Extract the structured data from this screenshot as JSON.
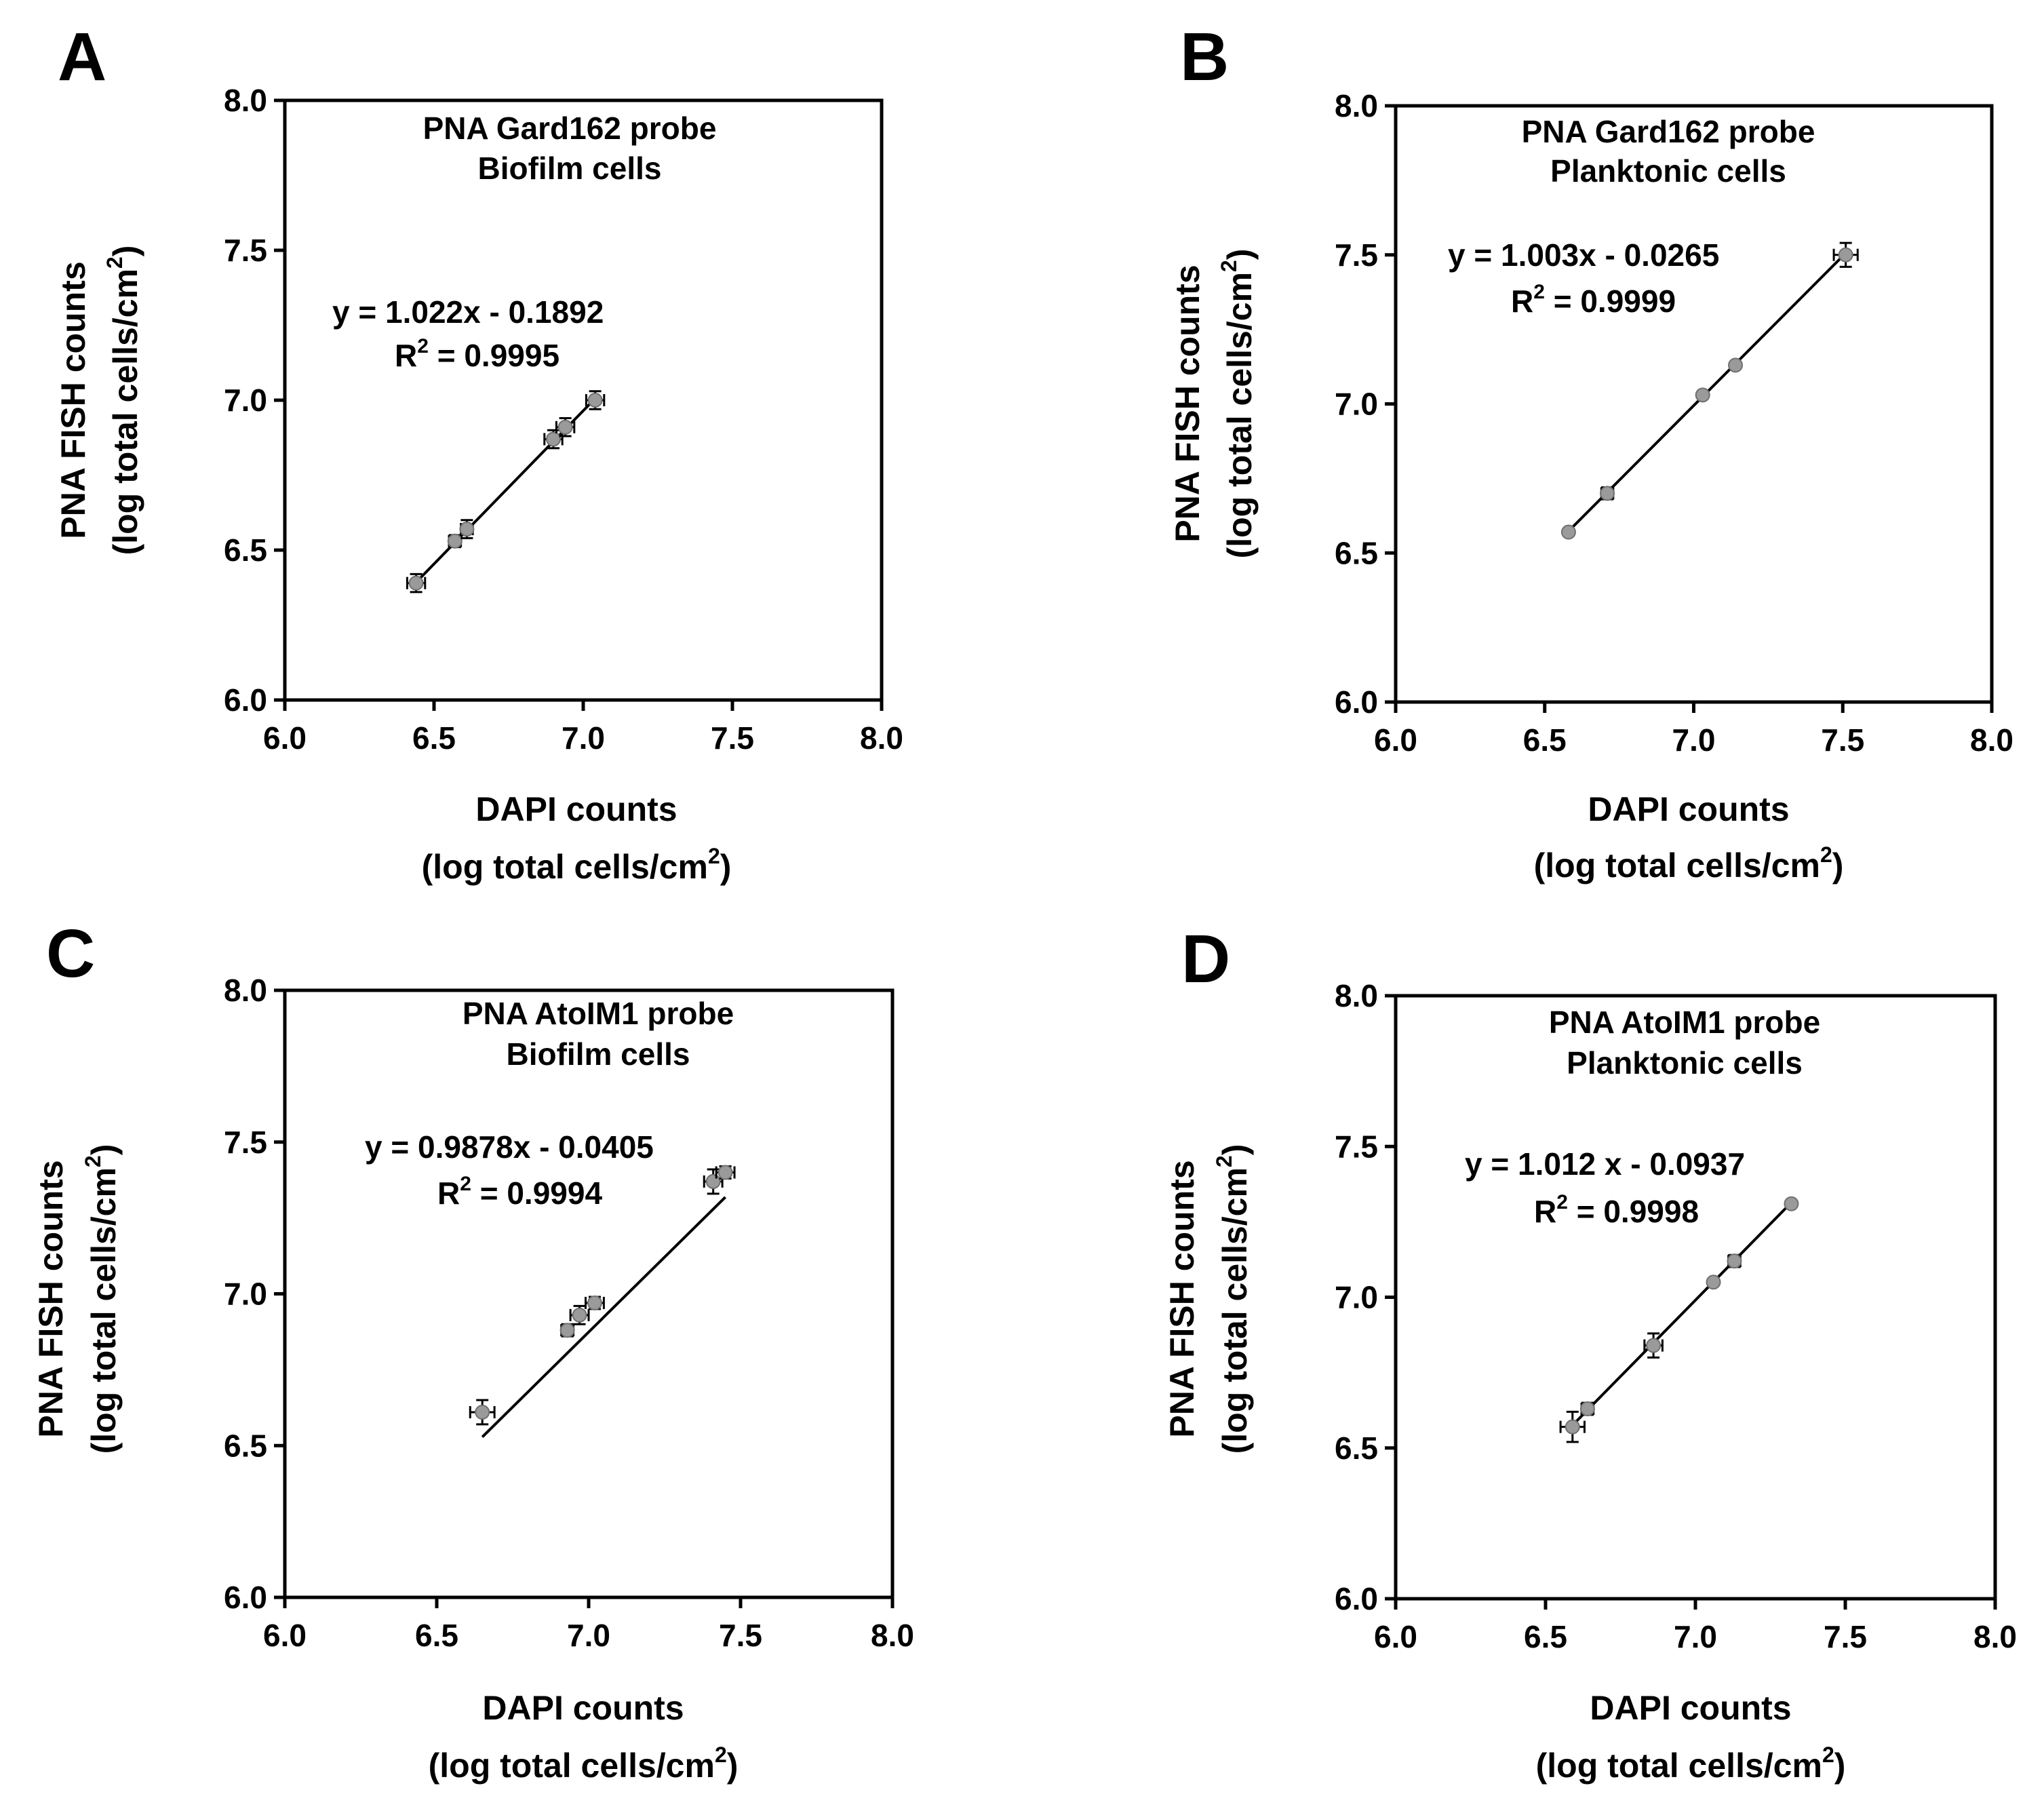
{
  "figure": {
    "units_label": "(log total cells/cm",
    "units_sup": "2",
    "units_close": ")",
    "r2_prefix": "R",
    "r2_sup": "2"
  },
  "chart_data": [
    {
      "panel": "A",
      "type": "scatter",
      "title": [
        "PNA Gard162 probe",
        "Biofilm cells"
      ],
      "xlabel": "DAPI counts",
      "ylabel": "PNA FISH counts",
      "xlim": [
        6.0,
        8.0
      ],
      "ylim": [
        6.0,
        8.0
      ],
      "xticks": [
        "6.0",
        "6.5",
        "7.0",
        "7.5",
        "8.0"
      ],
      "yticks": [
        "6.0",
        "6.5",
        "7.0",
        "7.5",
        "8.0"
      ],
      "equation": "y = 1.022x - 0.1892",
      "r2_value": " = 0.9995",
      "slope": 1.022,
      "intercept": -0.1892,
      "fit_x": [
        6.44,
        7.04
      ],
      "points": [
        {
          "x": 6.44,
          "y": 6.39,
          "xerr": 0.03,
          "yerr": 0.03
        },
        {
          "x": 6.57,
          "y": 6.53,
          "xerr": 0.02,
          "yerr": 0.02
        },
        {
          "x": 6.61,
          "y": 6.57,
          "xerr": 0.02,
          "yerr": 0.03
        },
        {
          "x": 6.9,
          "y": 6.87,
          "xerr": 0.03,
          "yerr": 0.03
        },
        {
          "x": 6.94,
          "y": 6.91,
          "xerr": 0.03,
          "yerr": 0.03
        },
        {
          "x": 7.04,
          "y": 7.0,
          "xerr": 0.03,
          "yerr": 0.03
        }
      ]
    },
    {
      "panel": "B",
      "type": "scatter",
      "title": [
        "PNA Gard162 probe",
        "Planktonic cells"
      ],
      "xlabel": "DAPI counts",
      "ylabel": "PNA FISH counts",
      "xlim": [
        6.0,
        8.0
      ],
      "ylim": [
        6.0,
        8.0
      ],
      "xticks": [
        "6.0",
        "6.5",
        "7.0",
        "7.5",
        "8.0"
      ],
      "yticks": [
        "6.0",
        "6.5",
        "7.0",
        "7.5",
        "8.0"
      ],
      "equation": "y = 1.003x - 0.0265",
      "r2_value": " = 0.9999",
      "slope": 1.003,
      "intercept": -0.0265,
      "fit_x": [
        6.58,
        7.5
      ],
      "points": [
        {
          "x": 6.58,
          "y": 6.57,
          "xerr": 0.0,
          "yerr": 0.0
        },
        {
          "x": 6.71,
          "y": 6.7,
          "xerr": 0.02,
          "yerr": 0.02
        },
        {
          "x": 7.03,
          "y": 7.03,
          "xerr": 0.0,
          "yerr": 0.0
        },
        {
          "x": 7.14,
          "y": 7.13,
          "xerr": 0.0,
          "yerr": 0.0
        },
        {
          "x": 7.51,
          "y": 7.5,
          "xerr": 0.04,
          "yerr": 0.04
        }
      ]
    },
    {
      "panel": "C",
      "type": "scatter",
      "title": [
        "PNA AtoIM1 probe",
        "Biofilm cells"
      ],
      "xlabel": "DAPI counts",
      "ylabel": "PNA FISH counts",
      "xlim": [
        6.0,
        8.0
      ],
      "ylim": [
        6.0,
        8.0
      ],
      "xticks": [
        "6.0",
        "6.5",
        "7.0",
        "7.5",
        "8.0"
      ],
      "yticks": [
        "6.0",
        "6.5",
        "7.0",
        "7.5",
        "8.0"
      ],
      "equation": "y = 0.9878x - 0.0405",
      "r2_value": " = 0.9994",
      "slope": 0.9878,
      "intercept": -0.0405,
      "fit_x": [
        6.65,
        7.45
      ],
      "points": [
        {
          "x": 6.65,
          "y": 6.61,
          "xerr": 0.04,
          "yerr": 0.04
        },
        {
          "x": 6.93,
          "y": 6.88,
          "xerr": 0.02,
          "yerr": 0.02
        },
        {
          "x": 6.97,
          "y": 6.93,
          "xerr": 0.03,
          "yerr": 0.03
        },
        {
          "x": 7.02,
          "y": 6.97,
          "xerr": 0.03,
          "yerr": 0.02
        },
        {
          "x": 7.41,
          "y": 7.37,
          "xerr": 0.03,
          "yerr": 0.04
        },
        {
          "x": 7.45,
          "y": 7.4,
          "xerr": 0.03,
          "yerr": 0.02
        }
      ]
    },
    {
      "panel": "D",
      "type": "scatter",
      "title": [
        "PNA AtoIM1 probe",
        "Planktonic cells"
      ],
      "xlabel": "DAPI counts",
      "ylabel": "PNA FISH counts",
      "xlim": [
        6.0,
        8.0
      ],
      "ylim": [
        6.0,
        8.0
      ],
      "xticks": [
        "6.0",
        "6.5",
        "7.0",
        "7.5",
        "8.0"
      ],
      "yticks": [
        "6.0",
        "6.5",
        "7.0",
        "7.5",
        "8.0"
      ],
      "equation": "y = 1.012 x - 0.0937",
      "r2_value": " = 0.9998",
      "slope": 1.012,
      "intercept": -0.0937,
      "fit_x": [
        6.59,
        7.32
      ],
      "points": [
        {
          "x": 6.59,
          "y": 6.57,
          "xerr": 0.04,
          "yerr": 0.05
        },
        {
          "x": 6.64,
          "y": 6.63,
          "xerr": 0.02,
          "yerr": 0.02
        },
        {
          "x": 6.86,
          "y": 6.84,
          "xerr": 0.03,
          "yerr": 0.04
        },
        {
          "x": 7.06,
          "y": 7.05,
          "xerr": 0.0,
          "yerr": 0.0
        },
        {
          "x": 7.13,
          "y": 7.12,
          "xerr": 0.02,
          "yerr": 0.02
        },
        {
          "x": 7.32,
          "y": 7.31,
          "xerr": 0.0,
          "yerr": 0.0
        }
      ]
    }
  ]
}
